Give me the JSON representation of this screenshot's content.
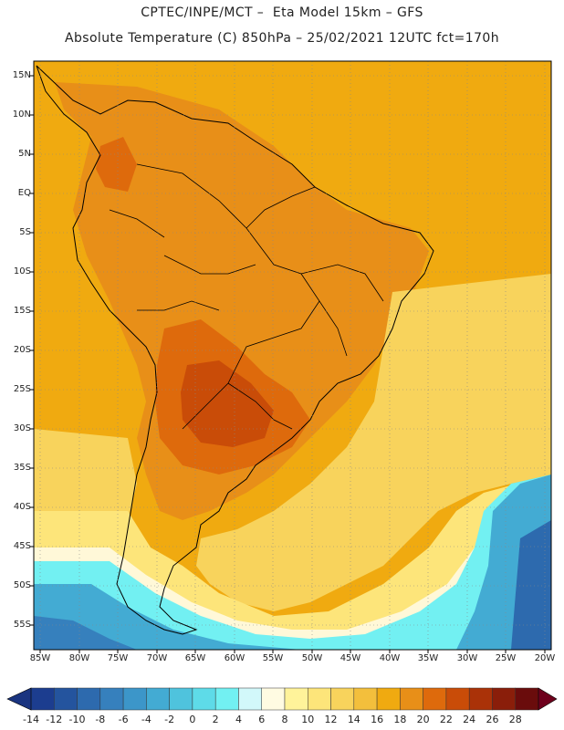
{
  "header": {
    "line1": "CPTEC/INPE/MCT –  Eta Model 15km – GFS",
    "line2": "Absolute Temperature (C) 850hPa – 25/02/2021 12UTC fct=170h"
  },
  "map": {
    "lat_labels": [
      "15N",
      "10N",
      "5N",
      "EQ",
      "5S",
      "10S",
      "15S",
      "20S",
      "25S",
      "30S",
      "35S",
      "40S",
      "45S",
      "50S",
      "55S"
    ],
    "lon_labels": [
      "85W",
      "80W",
      "75W",
      "70W",
      "65W",
      "60W",
      "55W",
      "50W",
      "45W",
      "40W",
      "35W",
      "30W",
      "25W",
      "20W"
    ]
  },
  "colorbar": {
    "labels": [
      "-14",
      "-12",
      "-10",
      "-8",
      "-6",
      "-4",
      "-2",
      "0",
      "2",
      "4",
      "6",
      "8",
      "10",
      "12",
      "14",
      "16",
      "18",
      "20",
      "22",
      "24",
      "26",
      "28"
    ],
    "colors": [
      "#1c3d8f",
      "#24549e",
      "#2d6aae",
      "#3680bd",
      "#3c96c9",
      "#43abd3",
      "#4fc3dd",
      "#5edbe8",
      "#72f0f2",
      "#d2f8fa",
      "#fffbe2",
      "#fff39a",
      "#fde57a",
      "#f8d35c",
      "#f3bf3c",
      "#f0aa10",
      "#e88f18",
      "#de6a0c",
      "#c94c08",
      "#aa3208",
      "#8a1e0a",
      "#6a0c0c"
    ],
    "end_left": "#1a3480",
    "end_right": "#6e001c"
  },
  "colors": {
    "background_ocean": "#f3b21e",
    "frame": "#000000"
  }
}
